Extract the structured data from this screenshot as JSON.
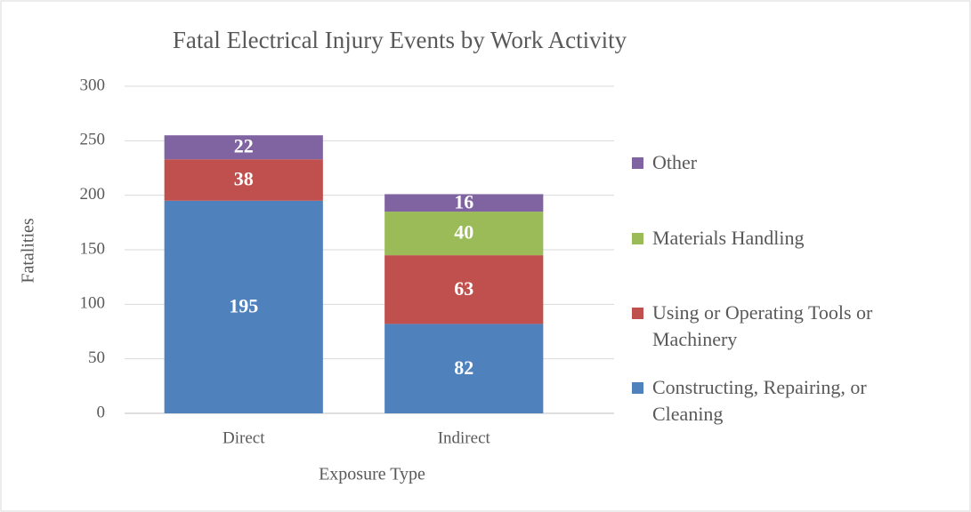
{
  "chart_data": {
    "type": "stacked_bar",
    "title": "Fatal Electrical Injury Events by Work Activity",
    "x_label": "Exposure Type",
    "y_label": "Fatalities",
    "categories": [
      "Direct",
      "Indirect"
    ],
    "series": [
      {
        "name": "Constructing, Repairing, or Cleaning",
        "color": "#4f81bd",
        "values": [
          195,
          82
        ]
      },
      {
        "name": "Using or Operating Tools or Machinery",
        "color": "#c0504d",
        "values": [
          38,
          63
        ]
      },
      {
        "name": "Materials Handling",
        "color": "#9bbb59",
        "values": [
          null,
          40
        ]
      },
      {
        "name": "Other",
        "color": "#8064a2",
        "values": [
          22,
          16
        ]
      }
    ],
    "ylim": [
      0,
      300
    ],
    "yticks": [
      0,
      50,
      100,
      150,
      200,
      250,
      300
    ],
    "grid": true,
    "legend": "right"
  }
}
